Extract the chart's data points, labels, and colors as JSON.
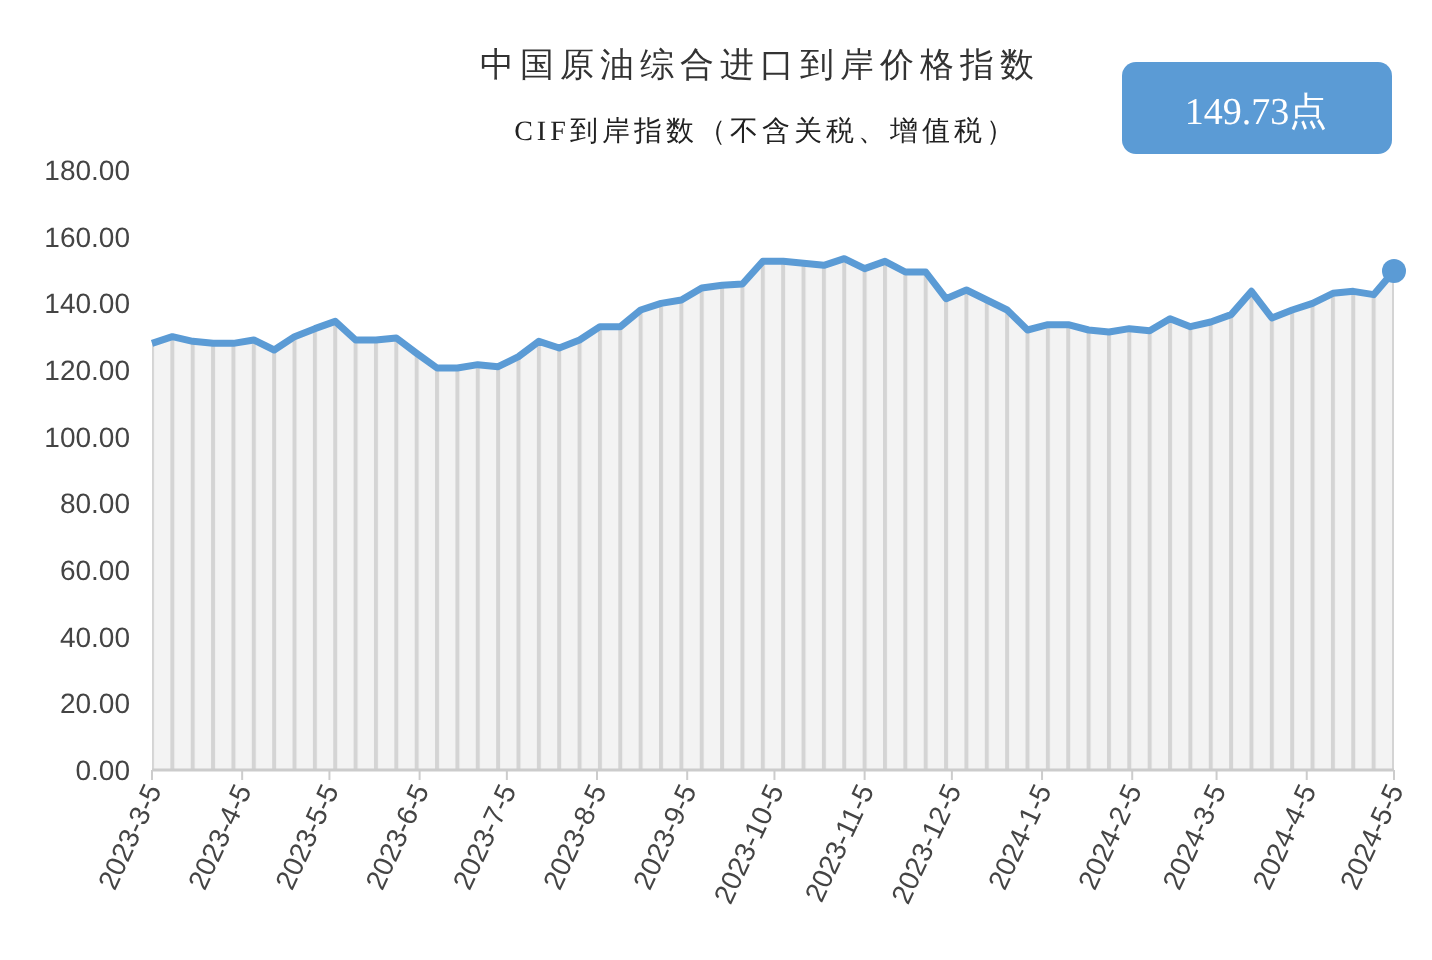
{
  "chart_data": {
    "type": "area",
    "title": "中国原油综合进口到岸价格指数",
    "subtitle": "CIF到岸指数（不含关税、增值税）",
    "annotations": [
      "149.73点"
    ],
    "x": [
      "2023-03-05",
      "2023-03-12",
      "2023-03-19",
      "2023-03-26",
      "2023-04-02",
      "2023-04-09",
      "2023-04-16",
      "2023-04-23",
      "2023-04-30",
      "2023-05-07",
      "2023-05-14",
      "2023-05-21",
      "2023-05-28",
      "2023-06-04",
      "2023-06-11",
      "2023-06-18",
      "2023-06-25",
      "2023-07-02",
      "2023-07-09",
      "2023-07-16",
      "2023-07-23",
      "2023-07-30",
      "2023-08-06",
      "2023-08-13",
      "2023-08-20",
      "2023-08-27",
      "2023-09-03",
      "2023-09-10",
      "2023-09-17",
      "2023-09-24",
      "2023-10-01",
      "2023-10-08",
      "2023-10-15",
      "2023-10-22",
      "2023-10-29",
      "2023-11-05",
      "2023-11-12",
      "2023-11-19",
      "2023-11-26",
      "2023-12-03",
      "2023-12-10",
      "2023-12-17",
      "2023-12-24",
      "2023-12-31",
      "2024-01-07",
      "2024-01-14",
      "2024-01-21",
      "2024-01-28",
      "2024-02-04",
      "2024-02-11",
      "2024-02-18",
      "2024-02-25",
      "2024-03-03",
      "2024-03-10",
      "2024-03-17",
      "2024-03-24",
      "2024-03-31",
      "2024-04-07",
      "2024-04-14",
      "2024-04-21",
      "2024-04-28",
      "2024-05-05"
    ],
    "series": [
      {
        "color": "#5b9bd5",
        "values": [
          128.0,
          130.0,
          128.6,
          128.0,
          128.0,
          129.0,
          126.0,
          130.0,
          132.4,
          134.6,
          129.0,
          129.0,
          129.6,
          125.0,
          120.6,
          120.6,
          121.6,
          121.0,
          124.0,
          128.6,
          126.6,
          129.0,
          133.0,
          133.0,
          138.0,
          140.0,
          141.0,
          144.6,
          145.4,
          145.8,
          152.6,
          152.6,
          152.0,
          151.4,
          153.4,
          150.4,
          152.6,
          149.4,
          149.4,
          141.4,
          144.0,
          141.0,
          138.0,
          132.0,
          133.6,
          133.6,
          132.0,
          131.4,
          132.4,
          131.8,
          135.4,
          133.0,
          134.4,
          136.6,
          143.6,
          135.6,
          138.0,
          140.0,
          143.0,
          143.6,
          142.6,
          149.73
        ]
      }
    ],
    "ylim": [
      0,
      180
    ],
    "yticks": [
      {
        "value": 0,
        "label": "0.00"
      },
      {
        "value": 20,
        "label": "20.00"
      },
      {
        "value": 40,
        "label": "40.00"
      },
      {
        "value": 60,
        "label": "60.00"
      },
      {
        "value": 80,
        "label": "80.00"
      },
      {
        "value": 100,
        "label": "100.00"
      },
      {
        "value": 120,
        "label": "120.00"
      },
      {
        "value": 140,
        "label": "140.00"
      },
      {
        "value": 160,
        "label": "160.00"
      },
      {
        "value": 180,
        "label": "180.00"
      }
    ],
    "xlim": [
      "2023-03-05",
      "2024-05-05"
    ],
    "xticks": [
      {
        "value": "2023-03-05",
        "label": "2023-3-5"
      },
      {
        "value": "2023-04-05",
        "label": "2023-4-5"
      },
      {
        "value": "2023-05-05",
        "label": "2023-5-5"
      },
      {
        "value": "2023-06-05",
        "label": "2023-6-5"
      },
      {
        "value": "2023-07-05",
        "label": "2023-7-5"
      },
      {
        "value": "2023-08-05",
        "label": "2023-8-5"
      },
      {
        "value": "2023-09-05",
        "label": "2023-9-5"
      },
      {
        "value": "2023-10-05",
        "label": "2023-10-5"
      },
      {
        "value": "2023-11-05",
        "label": "2023-11-5"
      },
      {
        "value": "2023-12-05",
        "label": "2023-12-5"
      },
      {
        "value": "2024-01-05",
        "label": "2024-1-5"
      },
      {
        "value": "2024-02-05",
        "label": "2024-2-5"
      },
      {
        "value": "2024-03-05",
        "label": "2024-3-5"
      },
      {
        "value": "2024-04-05",
        "label": "2024-4-5"
      },
      {
        "value": "2024-05-05",
        "label": "2024-5-5"
      }
    ],
    "grid": false
  }
}
